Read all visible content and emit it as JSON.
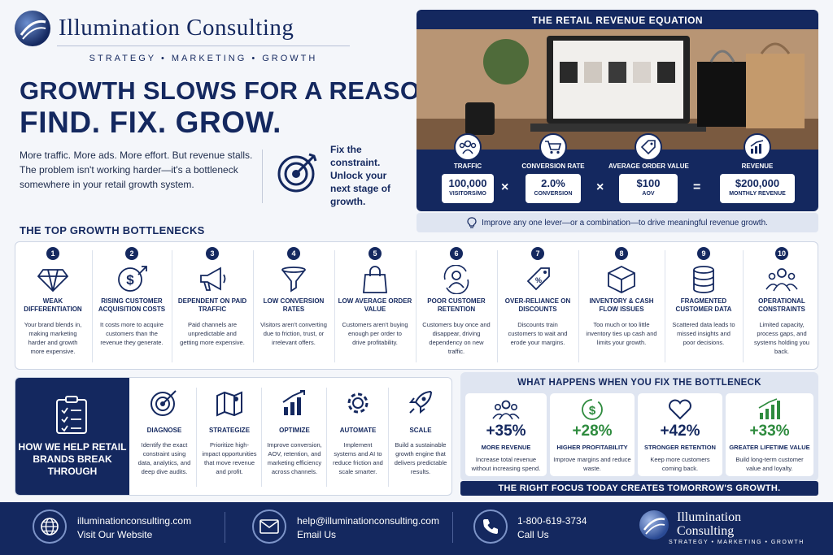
{
  "brand": {
    "name": "Illumination Consulting",
    "tagline": "STRATEGY  •  MARKETING  •  GROWTH"
  },
  "hero": {
    "headline1": "GROWTH SLOWS FOR A REASON.",
    "headline2": "FIND. FIX. GROW.",
    "intro": "More traffic. More ads. More effort. But revenue stalls. The problem isn't working harder—it's a bottleneck somewhere in your retail growth system.",
    "callout": "Fix the constraint. Unlock your next stage of growth."
  },
  "equation": {
    "title": "THE RETAIL REVENUE EQUATION",
    "levers": [
      {
        "label": "TRAFFIC",
        "value": "100,000",
        "unit": "VISITORS/MO",
        "icon": "people-icon"
      },
      {
        "label": "CONVERSION RATE",
        "value": "2.0%",
        "unit": "CONVERSION",
        "icon": "cart-icon"
      },
      {
        "label": "AVERAGE ORDER VALUE",
        "value": "$100",
        "unit": "AOV",
        "icon": "tag-icon"
      },
      {
        "label": "REVENUE",
        "value": "$200,000",
        "unit": "MONTHLY REVENUE",
        "icon": "chart-icon"
      }
    ],
    "op1": "×",
    "op2": "×",
    "op3": "=",
    "note": "Improve any one lever—or a combination—to drive meaningful revenue growth."
  },
  "bottlenecks": {
    "title": "THE TOP GROWTH BOTTLENECKS",
    "items": [
      {
        "num": "1",
        "head": "WEAK DIFFERENTIATION",
        "desc": "Your brand blends in, making marketing harder and growth more expensive.",
        "icon": "diamond-icon"
      },
      {
        "num": "2",
        "head": "RISING CUSTOMER ACQUISITION COSTS",
        "desc": "It costs more to acquire customers than the revenue they generate.",
        "icon": "dollar-up-icon"
      },
      {
        "num": "3",
        "head": "DEPENDENT ON PAID TRAFFIC",
        "desc": "Paid channels are unpredictable and getting more expensive.",
        "icon": "megaphone-icon"
      },
      {
        "num": "4",
        "head": "LOW CONVERSION RATES",
        "desc": "Visitors aren't converting due to friction, trust, or irrelevant offers.",
        "icon": "funnel-icon"
      },
      {
        "num": "5",
        "head": "LOW AVERAGE ORDER VALUE",
        "desc": "Customers aren't buying enough per order to drive profitability.",
        "icon": "bag-icon"
      },
      {
        "num": "6",
        "head": "POOR CUSTOMER RETENTION",
        "desc": "Customers buy once and disappear, driving dependency on new traffic.",
        "icon": "retention-icon"
      },
      {
        "num": "7",
        "head": "OVER-RELIANCE ON DISCOUNTS",
        "desc": "Discounts train customers to wait and erode your margins.",
        "icon": "discount-tag-icon"
      },
      {
        "num": "8",
        "head": "INVENTORY & CASH FLOW ISSUES",
        "desc": "Too much or too little inventory ties up cash and limits your growth.",
        "icon": "box-icon"
      },
      {
        "num": "9",
        "head": "FRAGMENTED CUSTOMER DATA",
        "desc": "Scattered data leads to missed insights and poor decisions.",
        "icon": "database-icon"
      },
      {
        "num": "10",
        "head": "OPERATIONAL CONSTRAINTS",
        "desc": "Limited capacity, process gaps, and systems holding you back.",
        "icon": "team-icon"
      }
    ]
  },
  "help": {
    "title": "HOW WE HELP RETAIL BRANDS BREAK THROUGH",
    "steps": [
      {
        "head": "DIAGNOSE",
        "desc": "Identify the exact constraint using data, analytics, and deep dive audits.",
        "icon": "target-icon"
      },
      {
        "head": "STRATEGIZE",
        "desc": "Prioritize high-impact opportunities that move revenue and profit.",
        "icon": "map-icon"
      },
      {
        "head": "OPTIMIZE",
        "desc": "Improve conversion, AOV, retention, and marketing efficiency across channels.",
        "icon": "bars-icon"
      },
      {
        "head": "AUTOMATE",
        "desc": "Implement systems and AI to reduce friction and scale smarter.",
        "icon": "gear-icon"
      },
      {
        "head": "SCALE",
        "desc": "Build a sustainable growth engine that delivers predictable results.",
        "icon": "rocket-icon"
      }
    ]
  },
  "results": {
    "title": "WHAT HAPPENS WHEN YOU FIX THE BOTTLENECK",
    "items": [
      {
        "value": "+35%",
        "head": "MORE REVENUE",
        "desc": "Increase total revenue without increasing spend.",
        "color": "#14285f",
        "icon": "people-icon"
      },
      {
        "value": "+28%",
        "head": "HIGHER PROFITABILITY",
        "desc": "Improve margins and reduce waste.",
        "color": "#2e8b3e",
        "icon": "dollar-icon"
      },
      {
        "value": "+42%",
        "head": "STRONGER RETENTION",
        "desc": "Keep more customers coming back.",
        "color": "#14285f",
        "icon": "heart-icon"
      },
      {
        "value": "+33%",
        "head": "GREATER LIFETIME VALUE",
        "desc": "Build long-term customer value and loyalty.",
        "color": "#2e8b3e",
        "icon": "growth-bars-icon"
      }
    ],
    "banner": "THE RIGHT FOCUS TODAY CREATES TOMORROW'S GROWTH."
  },
  "footer": {
    "website": "illuminationconsulting.com",
    "website_cta": "Visit Our Website",
    "email": "help@illuminationconsulting.com",
    "email_cta": "Email Us",
    "phone": "1-800-619-3734",
    "phone_cta": "Call Us",
    "brand_line1": "Illumination",
    "brand_line2": "Consulting",
    "tagline": "STRATEGY • MARKETING • GROWTH"
  },
  "colors": {
    "navy": "#14285f",
    "green": "#2e8b3e",
    "panel": "#dfe5f1"
  }
}
